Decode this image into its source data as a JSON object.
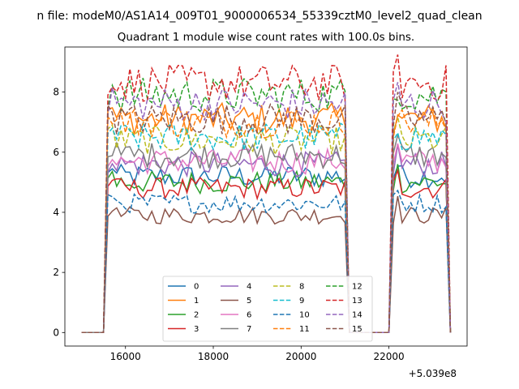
{
  "suptitle": "n file: modeM0/AS1A14_009T01_9000006534_55339cztM0_level2_quad_clean",
  "chart_data": {
    "type": "line",
    "title": "Quadrant 1 module wise count rates with 100.0s bins.",
    "xlabel": "",
    "ylabel": "",
    "x_offset_label": "+5.039e8",
    "x_offset": 503900000,
    "xlim": [
      14620,
      23780
    ],
    "ylim": [
      -0.45,
      9.5
    ],
    "xticks": [
      16000,
      18000,
      20000,
      22000
    ],
    "xtick_labels": [
      "16000",
      "18000",
      "20000",
      "22000"
    ],
    "yticks": [
      0,
      2,
      4,
      6,
      8
    ],
    "ytick_labels": [
      "0",
      "2",
      "4",
      "6",
      "8"
    ],
    "grid": false,
    "legend": {
      "placement": "lower center",
      "ncol": 4
    },
    "x_bin_width": 100,
    "segments": [
      {
        "start": 15000,
        "end": 15500,
        "state": "off"
      },
      {
        "start": 15500,
        "end": 21100,
        "state": "on"
      },
      {
        "start": 21100,
        "end": 22000,
        "state": "off"
      },
      {
        "start": 22000,
        "end": 23400,
        "state": "on"
      }
    ],
    "series": [
      {
        "name": "0",
        "color": "#1f77b4",
        "dash": false,
        "level": 5.2
      },
      {
        "name": "1",
        "color": "#ff7f0e",
        "dash": false,
        "level": 7.1
      },
      {
        "name": "2",
        "color": "#2ca02c",
        "dash": false,
        "level": 5.0
      },
      {
        "name": "3",
        "color": "#d62728",
        "dash": false,
        "level": 4.8
      },
      {
        "name": "4",
        "color": "#9467bd",
        "dash": false,
        "level": 5.6
      },
      {
        "name": "5",
        "color": "#8c564b",
        "dash": false,
        "level": 3.9
      },
      {
        "name": "6",
        "color": "#e377c2",
        "dash": false,
        "level": 5.7
      },
      {
        "name": "7",
        "color": "#7f7f7f",
        "dash": false,
        "level": 5.9
      },
      {
        "name": "8",
        "color": "#bcbd22",
        "dash": true,
        "level": 6.4
      },
      {
        "name": "9",
        "color": "#17becf",
        "dash": true,
        "level": 6.5
      },
      {
        "name": "10",
        "color": "#1f77b4",
        "dash": true,
        "level": 4.3
      },
      {
        "name": "11",
        "color": "#ff7f0e",
        "dash": true,
        "level": 7.0
      },
      {
        "name": "12",
        "color": "#2ca02c",
        "dash": true,
        "level": 7.9
      },
      {
        "name": "13",
        "color": "#d62728",
        "dash": true,
        "level": 8.3
      },
      {
        "name": "14",
        "color": "#9467bd",
        "dash": true,
        "level": 7.6
      },
      {
        "name": "15",
        "color": "#8c564b",
        "dash": true,
        "level": 7.1
      }
    ]
  }
}
